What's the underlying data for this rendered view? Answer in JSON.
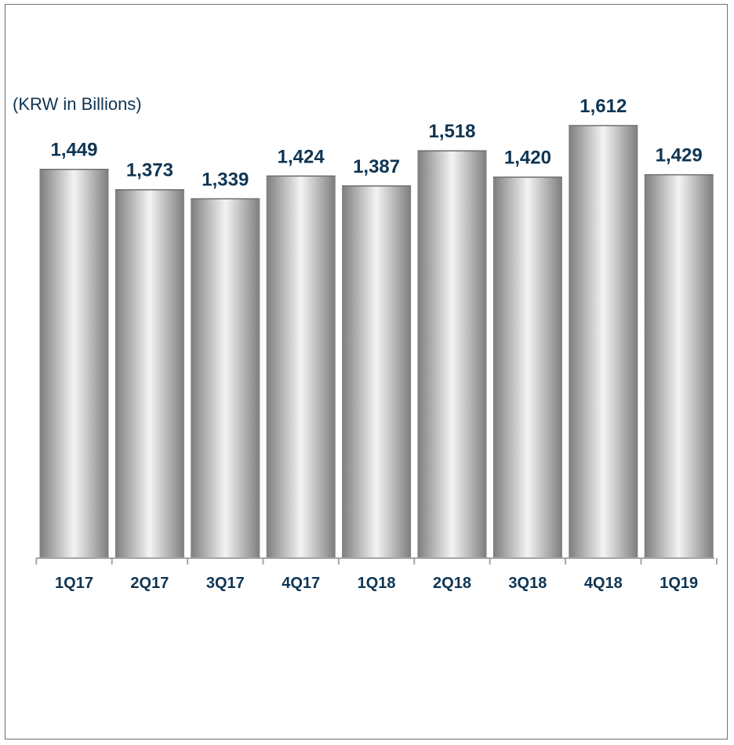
{
  "chart_data": {
    "type": "bar",
    "unit_label": "(KRW in Billions)",
    "categories": [
      "1Q17",
      "2Q17",
      "3Q17",
      "4Q17",
      "1Q18",
      "2Q18",
      "3Q18",
      "4Q18",
      "1Q19"
    ],
    "values": [
      1449,
      1373,
      1339,
      1424,
      1387,
      1518,
      1420,
      1612,
      1429
    ],
    "value_labels": [
      "1,449",
      "1,373",
      "1,339",
      "1,424",
      "1,387",
      "1,518",
      "1,420",
      "1,612",
      "1,429"
    ],
    "ylim": [
      0,
      1612
    ],
    "grid": false,
    "legend": "none",
    "colors": {
      "bar_edge": "#7d7d7d",
      "bar_center": "#f4f4f4",
      "text": "#0f3553",
      "axis": "#a6a6a6"
    }
  }
}
